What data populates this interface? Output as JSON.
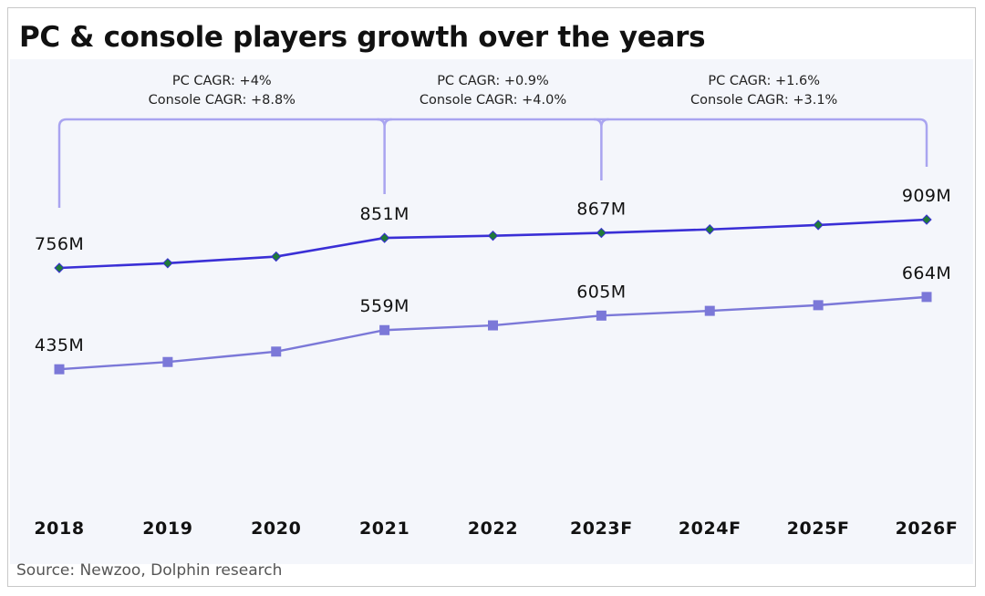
{
  "title": "PC & console players growth over the years",
  "source": "Source: Newzoo, Dolphin research",
  "colors": {
    "pc_line": "#3a2fd6",
    "pc_marker": "#1f7a3a",
    "console_line": "#7b78d8",
    "console_marker": "#7b78d8",
    "bracket": "#a9a4f0",
    "plot_background": "#f4f6fb"
  },
  "chart_data": {
    "type": "line",
    "title": "PC & console players growth over the years",
    "xlabel": "",
    "ylabel": "",
    "categories": [
      "2018",
      "2019",
      "2020",
      "2021",
      "2022",
      "2023F",
      "2024F",
      "2025F",
      "2026F"
    ],
    "ylim": [
      300,
      1000
    ],
    "grid": false,
    "series": [
      {
        "values": [
          756,
          771,
          792,
          851,
          858,
          867,
          878,
          892,
          909
        ],
        "marker": "diamond",
        "data_labels": {
          "0": "756M",
          "3": "851M",
          "5": "867M",
          "8": "909M"
        }
      },
      {
        "values": [
          435,
          458,
          491,
          559,
          574,
          605,
          620,
          638,
          664
        ],
        "marker": "square",
        "data_labels": {
          "0": "435M",
          "3": "559M",
          "5": "605M",
          "8": "664M"
        }
      }
    ],
    "annotations": [
      {
        "from": "2018",
        "to": "2021",
        "lines": [
          "PC CAGR: +4%",
          "Console CAGR: +8.8%"
        ]
      },
      {
        "from": "2021",
        "to": "2023F",
        "lines": [
          "PC CAGR: +0.9%",
          "Console CAGR: +4.0%"
        ]
      },
      {
        "from": "2023F",
        "to": "2026F",
        "lines": [
          "PC CAGR: +1.6%",
          "Console CAGR: +3.1%"
        ]
      }
    ]
  }
}
